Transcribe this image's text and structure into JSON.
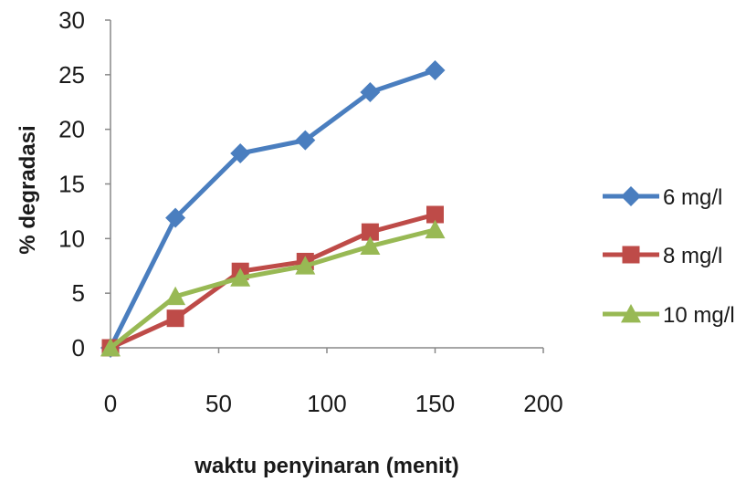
{
  "chart_data": {
    "type": "line",
    "xlabel": "waktu penyinaran (menit)",
    "ylabel": "% degradasi",
    "xlim": [
      0,
      200
    ],
    "ylim": [
      0,
      30
    ],
    "x_ticks": [
      "0",
      "50",
      "100",
      "150",
      "200"
    ],
    "y_ticks": [
      "0",
      "5",
      "10",
      "15",
      "20",
      "25",
      "30"
    ],
    "grid": false,
    "legend_position": "right",
    "series": [
      {
        "name": "6 mg/l",
        "color": "#4a7ebf",
        "marker": "diamond",
        "x": [
          0,
          30,
          60,
          90,
          120,
          150
        ],
        "y": [
          0,
          11.9,
          17.8,
          19.0,
          23.4,
          25.4
        ]
      },
      {
        "name": "8 mg/l",
        "color": "#be4b48",
        "marker": "square",
        "x": [
          0,
          30,
          60,
          90,
          120,
          150
        ],
        "y": [
          0,
          2.7,
          7.0,
          7.9,
          10.6,
          12.2
        ]
      },
      {
        "name": "10 mg/l",
        "color": "#98b954",
        "marker": "triangle",
        "x": [
          0,
          30,
          60,
          90,
          120,
          150
        ],
        "y": [
          0,
          4.7,
          6.4,
          7.5,
          9.3,
          10.8
        ]
      }
    ]
  }
}
